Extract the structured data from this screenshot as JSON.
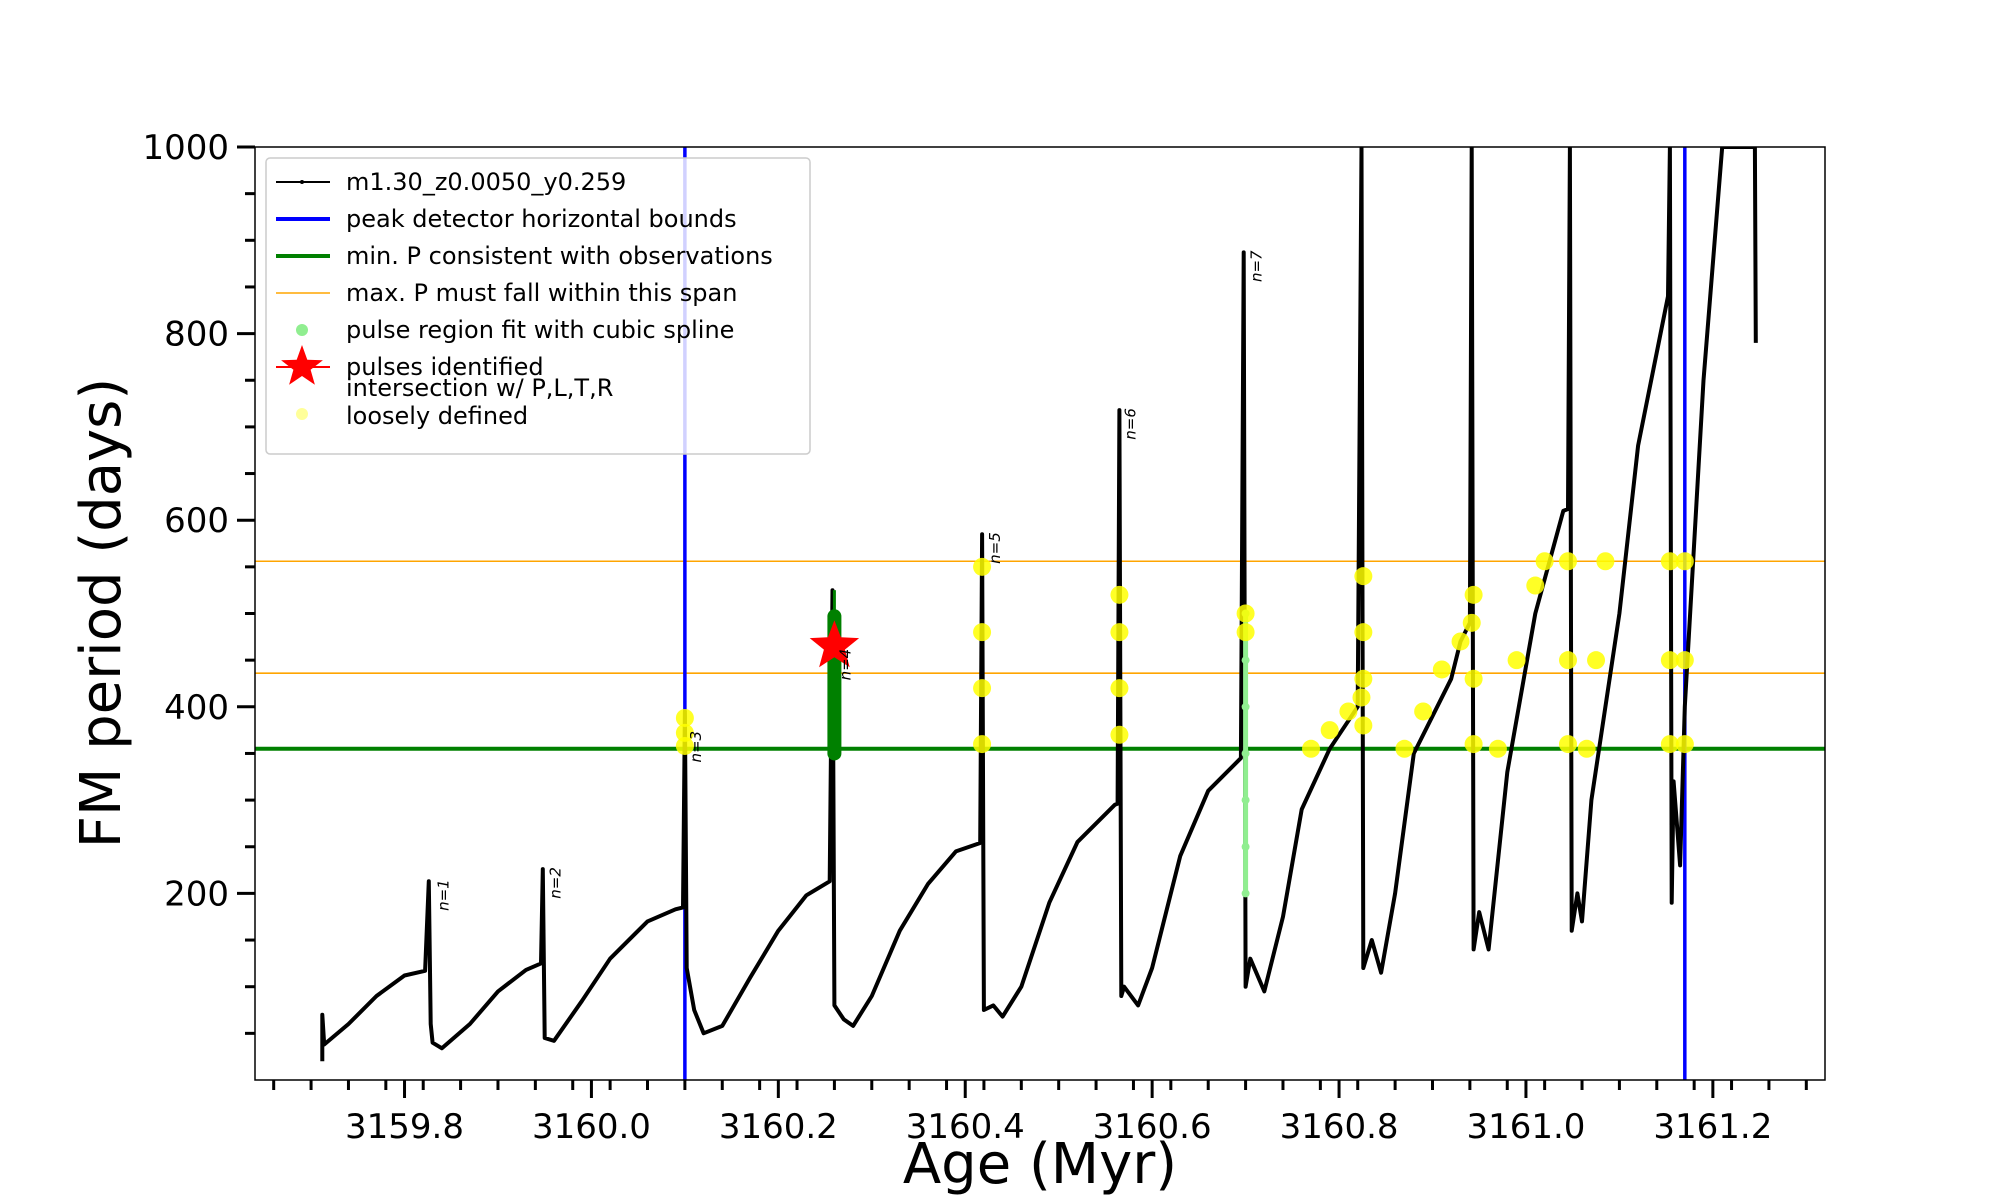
{
  "chart_data": {
    "type": "line",
    "title": "",
    "xlabel": "Age (Myr)",
    "ylabel": "FM period (days)",
    "xlim": [
      3159.64,
      3161.32
    ],
    "ylim": [
      0,
      1000
    ],
    "x_ticks": [
      "3159.8",
      "3160.0",
      "3160.2",
      "3160.4",
      "3160.6",
      "3160.8",
      "3161.0",
      "3161.2"
    ],
    "y_ticks": [
      "200",
      "400",
      "600",
      "800",
      "1000"
    ],
    "x_tick_values": [
      3159.8,
      3160.0,
      3160.2,
      3160.4,
      3160.6,
      3160.8,
      3161.0,
      3161.2
    ],
    "y_tick_values": [
      200,
      400,
      600,
      800,
      1000
    ],
    "grid": false,
    "legend_position": "top-left",
    "legend": [
      {
        "label": "m1.30_z0.0050_y0.259",
        "kind": "line-marker",
        "color": "#000000"
      },
      {
        "label": "peak detector horizontal bounds",
        "kind": "line",
        "color": "#0000ff"
      },
      {
        "label": "min. P consistent with observations",
        "kind": "line",
        "color": "#008000"
      },
      {
        "label": "max. P must fall within this span",
        "kind": "thin-line",
        "color": "#ffa500"
      },
      {
        "label": "pulse region fit with cubic spline",
        "kind": "dot",
        "color": "#90ee90"
      },
      {
        "label": "pulses identified",
        "kind": "star",
        "color": "#ff0000"
      },
      {
        "label": "intersection w/ P,L,T,R\nloosely defined",
        "kind": "dot",
        "color": "#ffff99"
      }
    ],
    "vertical_lines": [
      {
        "x": 3160.1,
        "color": "#0000ff"
      },
      {
        "x": 3161.17,
        "color": "#0000ff"
      }
    ],
    "horizontal_lines": [
      {
        "y": 355,
        "color": "#008000",
        "width": "thick"
      },
      {
        "y": 436,
        "color": "#ffa500",
        "width": "thin"
      },
      {
        "y": 556,
        "color": "#ffa500",
        "width": "thin"
      }
    ],
    "pulse_labels": [
      {
        "text": "n=1",
        "x": 3159.83,
        "y": 213
      },
      {
        "text": "n=2",
        "x": 3159.95,
        "y": 226
      },
      {
        "text": "n=3",
        "x": 3160.1,
        "y": 372
      },
      {
        "text": "n=4",
        "x": 3160.26,
        "y": 460
      },
      {
        "text": "n=5",
        "x": 3160.42,
        "y": 585
      },
      {
        "text": "n=6",
        "x": 3160.565,
        "y": 718
      },
      {
        "text": "n=7",
        "x": 3160.7,
        "y": 887
      }
    ],
    "pulses_identified": [
      {
        "x": 3160.26,
        "y": 465
      }
    ],
    "series": [
      {
        "name": "m1.30_z0.0050_y0.259",
        "color": "#000000",
        "points": [
          [
            3159.712,
            20
          ],
          [
            3159.712,
            70
          ],
          [
            3159.714,
            38
          ],
          [
            3159.74,
            60
          ],
          [
            3159.77,
            90
          ],
          [
            3159.8,
            112
          ],
          [
            3159.822,
            117
          ],
          [
            3159.826,
            213
          ],
          [
            3159.828,
            60
          ],
          [
            3159.83,
            40
          ],
          [
            3159.84,
            34
          ],
          [
            3159.87,
            60
          ],
          [
            3159.9,
            95
          ],
          [
            3159.93,
            118
          ],
          [
            3159.946,
            125
          ],
          [
            3159.948,
            226
          ],
          [
            3159.95,
            45
          ],
          [
            3159.96,
            42
          ],
          [
            3159.99,
            85
          ],
          [
            3160.02,
            130
          ],
          [
            3160.06,
            170
          ],
          [
            3160.09,
            183
          ],
          [
            3160.098,
            185
          ],
          [
            3160.1,
            395
          ],
          [
            3160.102,
            120
          ],
          [
            3160.11,
            75
          ],
          [
            3160.12,
            50
          ],
          [
            3160.14,
            58
          ],
          [
            3160.17,
            110
          ],
          [
            3160.2,
            160
          ],
          [
            3160.23,
            198
          ],
          [
            3160.255,
            213
          ],
          [
            3160.258,
            525
          ],
          [
            3160.26,
            80
          ],
          [
            3160.27,
            65
          ],
          [
            3160.28,
            58
          ],
          [
            3160.3,
            90
          ],
          [
            3160.33,
            160
          ],
          [
            3160.36,
            210
          ],
          [
            3160.39,
            245
          ],
          [
            3160.416,
            254
          ],
          [
            3160.418,
            585
          ],
          [
            3160.42,
            75
          ],
          [
            3160.43,
            80
          ],
          [
            3160.44,
            68
          ],
          [
            3160.46,
            100
          ],
          [
            3160.49,
            190
          ],
          [
            3160.52,
            255
          ],
          [
            3160.56,
            295
          ],
          [
            3160.563,
            296
          ],
          [
            3160.565,
            718
          ],
          [
            3160.567,
            90
          ],
          [
            3160.57,
            100
          ],
          [
            3160.585,
            80
          ],
          [
            3160.6,
            120
          ],
          [
            3160.63,
            240
          ],
          [
            3160.66,
            310
          ],
          [
            3160.695,
            345
          ],
          [
            3160.698,
            887
          ],
          [
            3160.7,
            100
          ],
          [
            3160.705,
            130
          ],
          [
            3160.72,
            95
          ],
          [
            3160.74,
            175
          ],
          [
            3160.76,
            290
          ],
          [
            3160.79,
            355
          ],
          [
            3160.82,
            400
          ],
          [
            3160.824,
            1000
          ],
          [
            3160.826,
            120
          ],
          [
            3160.835,
            150
          ],
          [
            3160.845,
            115
          ],
          [
            3160.86,
            200
          ],
          [
            3160.88,
            350
          ],
          [
            3160.92,
            430
          ],
          [
            3160.93,
            470
          ],
          [
            3160.94,
            490
          ],
          [
            3160.942,
            1000
          ],
          [
            3160.944,
            140
          ],
          [
            3160.95,
            180
          ],
          [
            3160.96,
            140
          ],
          [
            3160.98,
            330
          ],
          [
            3161.01,
            500
          ],
          [
            3161.04,
            610
          ],
          [
            3161.045,
            612
          ],
          [
            3161.047,
            1000
          ],
          [
            3161.049,
            160
          ],
          [
            3161.055,
            200
          ],
          [
            3161.06,
            170
          ],
          [
            3161.07,
            300
          ],
          [
            3161.1,
            500
          ],
          [
            3161.12,
            680
          ],
          [
            3161.14,
            780
          ],
          [
            3161.152,
            840
          ],
          [
            3161.154,
            1000
          ],
          [
            3161.156,
            190
          ],
          [
            3161.158,
            320
          ],
          [
            3161.165,
            230
          ],
          [
            3161.17,
            400
          ],
          [
            3161.19,
            750
          ],
          [
            3161.21,
            1000
          ],
          [
            3161.245,
            1000
          ],
          [
            3161.246,
            790
          ]
        ]
      },
      {
        "name": "cubic spline pulse regions",
        "color": "#90ee90",
        "points": [
          [
            3160.7,
            200
          ],
          [
            3160.7,
            250
          ],
          [
            3160.7,
            300
          ],
          [
            3160.7,
            350
          ],
          [
            3160.7,
            400
          ],
          [
            3160.7,
            450
          ],
          [
            3160.7,
            500
          ]
        ]
      },
      {
        "name": "n=4 pulse fit",
        "color": "#008000",
        "points": [
          [
            3160.26,
            350
          ],
          [
            3160.26,
            380
          ],
          [
            3160.26,
            410
          ],
          [
            3160.26,
            440
          ],
          [
            3160.26,
            470
          ],
          [
            3160.26,
            495
          ]
        ]
      },
      {
        "name": "intersection loosely defined",
        "color": "#ffff00",
        "points": [
          [
            3160.1,
            358
          ],
          [
            3160.1,
            372
          ],
          [
            3160.1,
            388
          ],
          [
            3160.418,
            360
          ],
          [
            3160.418,
            420
          ],
          [
            3160.418,
            480
          ],
          [
            3160.418,
            550
          ],
          [
            3160.565,
            370
          ],
          [
            3160.565,
            420
          ],
          [
            3160.565,
            480
          ],
          [
            3160.565,
            520
          ],
          [
            3160.7,
            480
          ],
          [
            3160.7,
            500
          ],
          [
            3160.77,
            355
          ],
          [
            3160.79,
            375
          ],
          [
            3160.81,
            395
          ],
          [
            3160.824,
            410
          ],
          [
            3160.826,
            380
          ],
          [
            3160.826,
            430
          ],
          [
            3160.826,
            480
          ],
          [
            3160.826,
            540
          ],
          [
            3160.87,
            355
          ],
          [
            3160.89,
            395
          ],
          [
            3160.91,
            440
          ],
          [
            3160.93,
            470
          ],
          [
            3160.942,
            490
          ],
          [
            3160.944,
            360
          ],
          [
            3160.944,
            430
          ],
          [
            3160.944,
            520
          ],
          [
            3160.97,
            355
          ],
          [
            3160.99,
            450
          ],
          [
            3161.01,
            530
          ],
          [
            3161.02,
            556
          ],
          [
            3161.045,
            360
          ],
          [
            3161.045,
            450
          ],
          [
            3161.045,
            556
          ],
          [
            3161.065,
            355
          ],
          [
            3161.075,
            450
          ],
          [
            3161.085,
            556
          ],
          [
            3161.154,
            360
          ],
          [
            3161.154,
            450
          ],
          [
            3161.154,
            556
          ],
          [
            3161.17,
            360
          ],
          [
            3161.17,
            450
          ],
          [
            3161.17,
            556
          ]
        ]
      }
    ]
  }
}
